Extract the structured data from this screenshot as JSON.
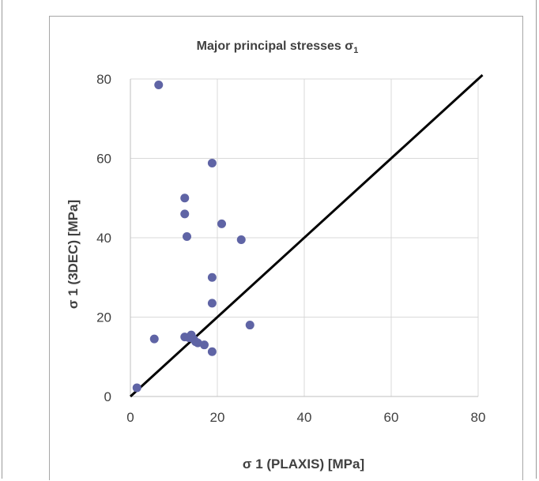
{
  "chart_data": {
    "type": "scatter",
    "title": "Major principal stresses σ",
    "title_subscript": "1",
    "xlabel": "σ 1 (PLAXIS) [MPa]",
    "ylabel": "σ 1 (3DEC) [MPa]",
    "xlim": [
      0,
      80
    ],
    "ylim": [
      0,
      80
    ],
    "x_ticks": [
      0,
      20,
      40,
      60,
      80
    ],
    "y_ticks": [
      0,
      20,
      40,
      60,
      80
    ],
    "grid": true,
    "legend": "none",
    "marker_color": "#5f64a5",
    "line_color": "#000000",
    "series": [
      {
        "type": "scatter",
        "points": [
          [
            1.5,
            2.2
          ],
          [
            5.5,
            14.5
          ],
          [
            6.5,
            78.5
          ],
          [
            12.5,
            50.0
          ],
          [
            12.5,
            46.0
          ],
          [
            13.0,
            40.3
          ],
          [
            12.5,
            15.0
          ],
          [
            13.5,
            14.8
          ],
          [
            14.0,
            15.5
          ],
          [
            14.5,
            14.5
          ],
          [
            15.0,
            13.8
          ],
          [
            15.5,
            13.5
          ],
          [
            17.0,
            13.0
          ],
          [
            18.8,
            11.3
          ],
          [
            18.8,
            58.8
          ],
          [
            18.8,
            30.0
          ],
          [
            18.8,
            23.5
          ],
          [
            21.0,
            43.5
          ],
          [
            25.5,
            39.5
          ],
          [
            27.5,
            18.0
          ]
        ]
      },
      {
        "type": "line",
        "points": [
          [
            0,
            0
          ],
          [
            81,
            81
          ]
        ]
      }
    ]
  }
}
